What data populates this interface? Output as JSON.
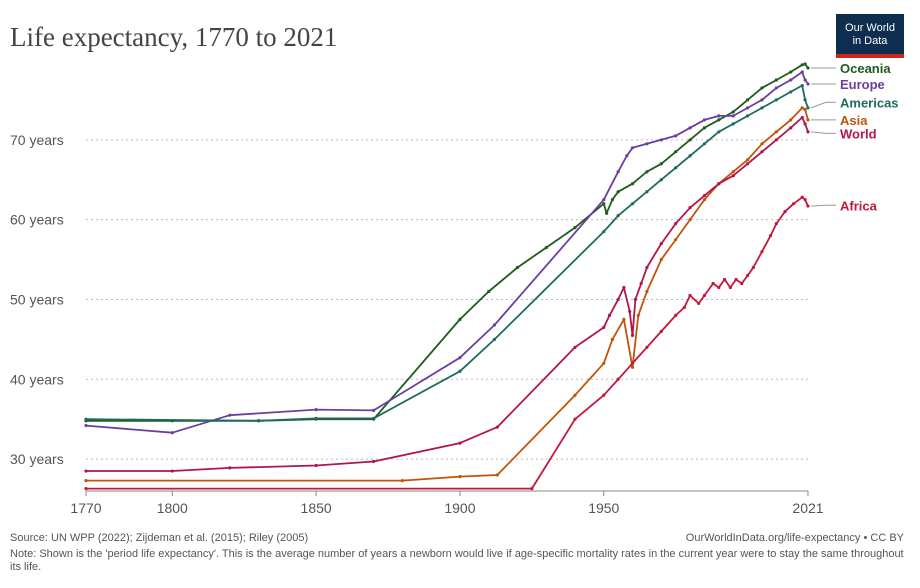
{
  "title": "Life expectancy, 1770 to 2021",
  "logo": {
    "line1": "Our World",
    "line2": "in Data"
  },
  "source": "Source: UN WPP (2022); Zijdeman et al. (2015); Riley (2005)",
  "credit": "OurWorldInData.org/life-expectancy • CC BY",
  "note": "Note: Shown is the 'period life expectancy'. This is the average number of years a newborn would live if age-specific mortality rates in the current year were to stay the same throughout its life.",
  "chart_data": {
    "type": "line",
    "title": "Life expectancy, 1770 to 2021",
    "xlim": [
      1770,
      2021
    ],
    "ylim": [
      26,
      80
    ],
    "x_ticks": [
      {
        "value": 1770,
        "label": "1770"
      },
      {
        "value": 1800,
        "label": "1800"
      },
      {
        "value": 1850,
        "label": "1850"
      },
      {
        "value": 1900,
        "label": "1900"
      },
      {
        "value": 1950,
        "label": "1950"
      },
      {
        "value": 2021,
        "label": "2021"
      }
    ],
    "y_ticks": [
      {
        "value": 30,
        "label": "30 years"
      },
      {
        "value": 40,
        "label": "40 years"
      },
      {
        "value": 50,
        "label": "50 years"
      },
      {
        "value": 60,
        "label": "60 years"
      },
      {
        "value": 70,
        "label": "70 years"
      }
    ],
    "grid": "horizontal dotted",
    "legend": "right",
    "series": [
      {
        "name": "Oceania",
        "color": "#1f5c1f",
        "points": [
          [
            1770,
            34.8
          ],
          [
            1800,
            34.8
          ],
          [
            1830,
            34.8
          ],
          [
            1850,
            35.0
          ],
          [
            1870,
            35.0
          ],
          [
            1900,
            47.5
          ],
          [
            1910,
            51
          ],
          [
            1920,
            54
          ],
          [
            1930,
            56.5
          ],
          [
            1940,
            59
          ],
          [
            1950,
            62
          ],
          [
            1951,
            60.8
          ],
          [
            1953,
            62.5
          ],
          [
            1955,
            63.5
          ],
          [
            1960,
            64.5
          ],
          [
            1965,
            66
          ],
          [
            1970,
            67
          ],
          [
            1975,
            68.5
          ],
          [
            1980,
            70
          ],
          [
            1985,
            71.5
          ],
          [
            1990,
            72.5
          ],
          [
            1995,
            73.5
          ],
          [
            2000,
            75
          ],
          [
            2005,
            76.5
          ],
          [
            2010,
            77.5
          ],
          [
            2015,
            78.5
          ],
          [
            2019,
            79.4
          ],
          [
            2020,
            79.5
          ],
          [
            2021,
            79
          ]
        ]
      },
      {
        "name": "Europe",
        "color": "#6b3fa0",
        "points": [
          [
            1770,
            34.2
          ],
          [
            1800,
            33.3
          ],
          [
            1820,
            35.5
          ],
          [
            1850,
            36.2
          ],
          [
            1870,
            36.1
          ],
          [
            1900,
            42.7
          ],
          [
            1912,
            46.8
          ],
          [
            1950,
            62.5
          ],
          [
            1955,
            66
          ],
          [
            1958,
            68
          ],
          [
            1960,
            69
          ],
          [
            1965,
            69.5
          ],
          [
            1970,
            70
          ],
          [
            1975,
            70.5
          ],
          [
            1980,
            71.5
          ],
          [
            1985,
            72.5
          ],
          [
            1990,
            73
          ],
          [
            1995,
            73
          ],
          [
            2000,
            74
          ],
          [
            2005,
            75
          ],
          [
            2010,
            76.5
          ],
          [
            2015,
            77.5
          ],
          [
            2019,
            78.5
          ],
          [
            2020,
            77.5
          ],
          [
            2021,
            77
          ]
        ]
      },
      {
        "name": "Americas",
        "color": "#1d6b5e",
        "points": [
          [
            1770,
            35.0
          ],
          [
            1830,
            34.8
          ],
          [
            1850,
            35.1
          ],
          [
            1870,
            35.1
          ],
          [
            1900,
            41
          ],
          [
            1912,
            45
          ],
          [
            1950,
            58.5
          ],
          [
            1955,
            60.5
          ],
          [
            1960,
            62
          ],
          [
            1965,
            63.5
          ],
          [
            1970,
            65
          ],
          [
            1975,
            66.5
          ],
          [
            1980,
            68
          ],
          [
            1985,
            69.5
          ],
          [
            1990,
            71
          ],
          [
            1995,
            72
          ],
          [
            2000,
            73
          ],
          [
            2005,
            74
          ],
          [
            2010,
            75
          ],
          [
            2015,
            76
          ],
          [
            2019,
            76.8
          ],
          [
            2020,
            75
          ],
          [
            2021,
            74
          ]
        ]
      },
      {
        "name": "Asia",
        "color": "#c0540a",
        "points": [
          [
            1770,
            27.3
          ],
          [
            1880,
            27.3
          ],
          [
            1900,
            27.8
          ],
          [
            1913,
            28
          ],
          [
            1940,
            38
          ],
          [
            1950,
            42
          ],
          [
            1953,
            45
          ],
          [
            1957,
            47.5
          ],
          [
            1960,
            41.5
          ],
          [
            1962,
            48
          ],
          [
            1965,
            51
          ],
          [
            1970,
            55
          ],
          [
            1975,
            57.5
          ],
          [
            1980,
            60
          ],
          [
            1985,
            62.5
          ],
          [
            1990,
            64.5
          ],
          [
            1995,
            66
          ],
          [
            2000,
            67.5
          ],
          [
            2005,
            69.5
          ],
          [
            2010,
            71
          ],
          [
            2015,
            72.5
          ],
          [
            2019,
            74
          ],
          [
            2020,
            73.8
          ],
          [
            2021,
            72.5
          ]
        ]
      },
      {
        "name": "World",
        "color": "#b1164b",
        "points": [
          [
            1770,
            28.5
          ],
          [
            1800,
            28.5
          ],
          [
            1820,
            28.9
          ],
          [
            1850,
            29.2
          ],
          [
            1870,
            29.7
          ],
          [
            1900,
            32
          ],
          [
            1913,
            34
          ],
          [
            1940,
            44
          ],
          [
            1950,
            46.5
          ],
          [
            1952,
            48
          ],
          [
            1955,
            50
          ],
          [
            1957,
            51.5
          ],
          [
            1959,
            48.5
          ],
          [
            1960,
            45.5
          ],
          [
            1961,
            50
          ],
          [
            1963,
            52
          ],
          [
            1965,
            54
          ],
          [
            1970,
            57
          ],
          [
            1975,
            59.5
          ],
          [
            1980,
            61.5
          ],
          [
            1985,
            63
          ],
          [
            1990,
            64.5
          ],
          [
            1995,
            65.5
          ],
          [
            2000,
            67
          ],
          [
            2005,
            68.5
          ],
          [
            2010,
            70
          ],
          [
            2015,
            71.5
          ],
          [
            2019,
            72.8
          ],
          [
            2020,
            72
          ],
          [
            2021,
            71
          ]
        ]
      },
      {
        "name": "Africa",
        "color": "#c4163c",
        "points": [
          [
            1770,
            26.3
          ],
          [
            1925,
            26.3
          ],
          [
            1940,
            35
          ],
          [
            1950,
            38
          ],
          [
            1955,
            40
          ],
          [
            1960,
            42
          ],
          [
            1965,
            44
          ],
          [
            1970,
            46
          ],
          [
            1975,
            48
          ],
          [
            1978,
            49
          ],
          [
            1980,
            50.5
          ],
          [
            1983,
            49.5
          ],
          [
            1985,
            50.5
          ],
          [
            1988,
            52
          ],
          [
            1990,
            51.5
          ],
          [
            1992,
            52.5
          ],
          [
            1994,
            51.5
          ],
          [
            1996,
            52.5
          ],
          [
            1998,
            52
          ],
          [
            2000,
            53
          ],
          [
            2002,
            54
          ],
          [
            2005,
            56
          ],
          [
            2008,
            58
          ],
          [
            2010,
            59.5
          ],
          [
            2013,
            61
          ],
          [
            2016,
            62
          ],
          [
            2019,
            62.8
          ],
          [
            2020,
            62.5
          ],
          [
            2021,
            61.7
          ]
        ]
      }
    ]
  }
}
